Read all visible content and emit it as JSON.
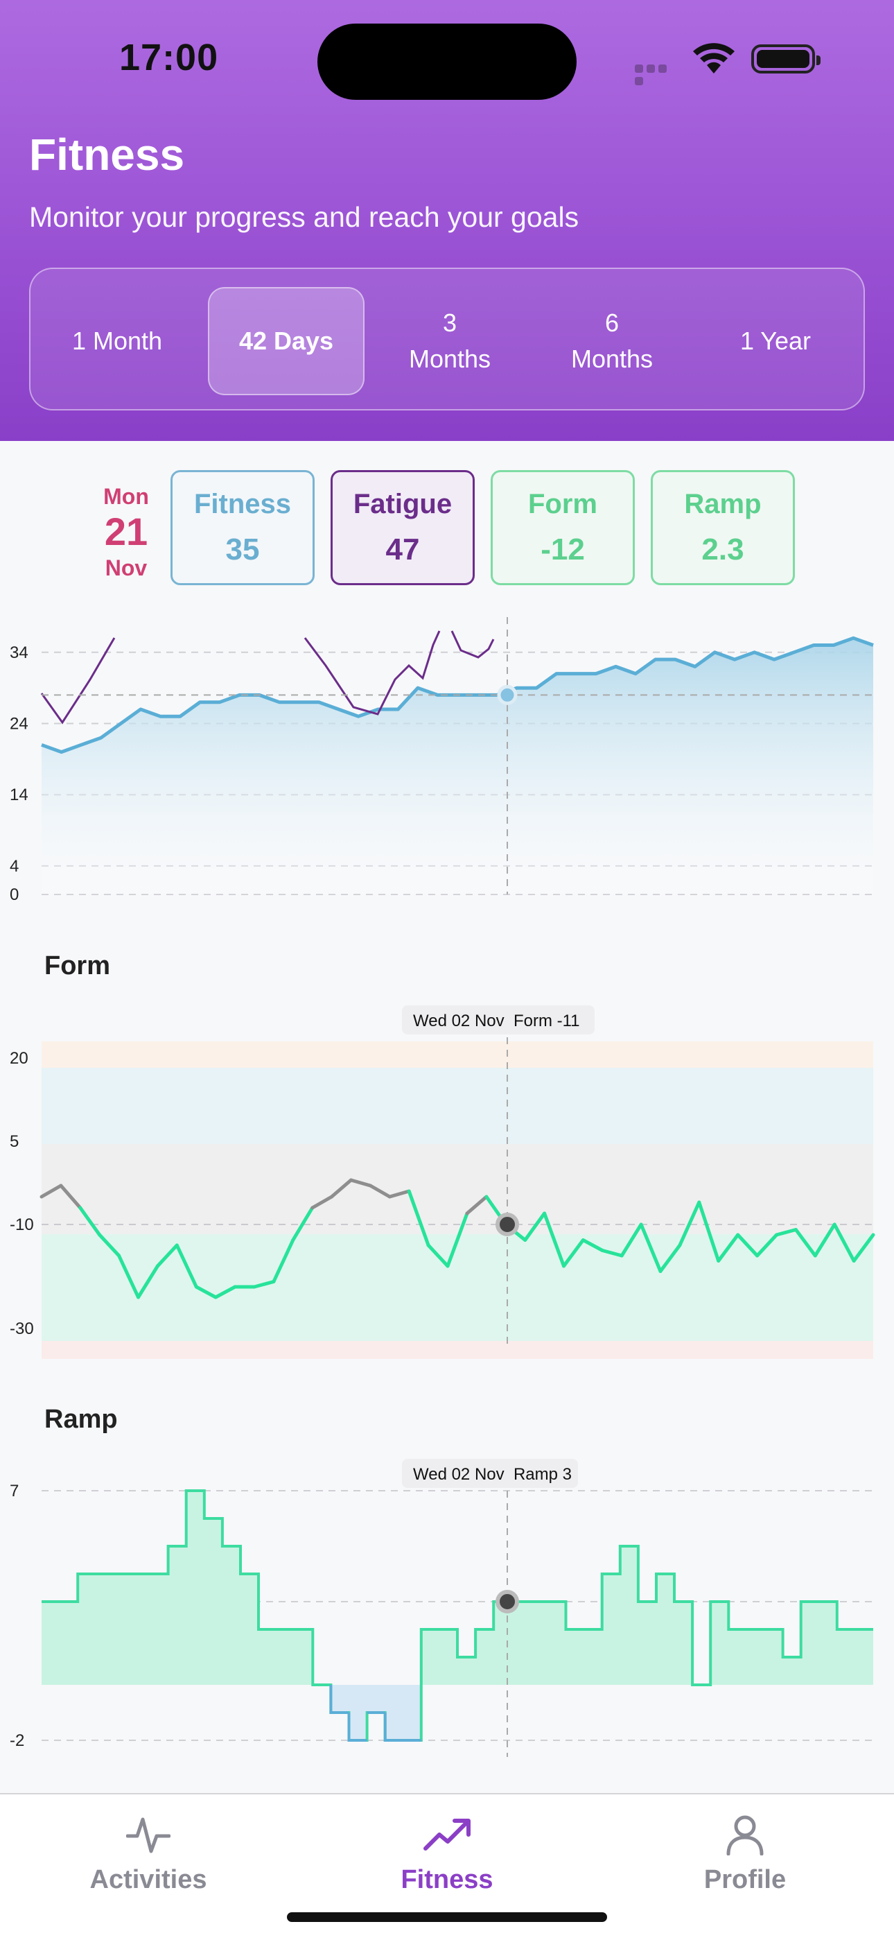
{
  "status": {
    "time": "17:00"
  },
  "header": {
    "title": "Fitness",
    "subtitle": "Monitor your progress and reach your goals",
    "ranges": [
      {
        "label": "1 Month",
        "active": false
      },
      {
        "label": "42 Days",
        "active": true
      },
      {
        "label": "3\nMonths",
        "active": false
      },
      {
        "label": "6\nMonths",
        "active": false
      },
      {
        "label": "1 Year",
        "active": false
      }
    ]
  },
  "selected_date": {
    "weekday": "Mon",
    "day": "21",
    "month": "Nov"
  },
  "metrics": [
    {
      "label": "Fitness",
      "value": "35",
      "color": "#6aaed0"
    },
    {
      "label": "Fatigue",
      "value": "47",
      "color": "#6b2d8a"
    },
    {
      "label": "Form",
      "value": "-12",
      "color": "#5cd08e"
    },
    {
      "label": "Ramp",
      "value": "2.3",
      "color": "#5cd08e"
    }
  ],
  "chart_data": [
    {
      "type": "line",
      "title": "",
      "yticks": [
        34,
        24,
        14,
        4,
        0
      ],
      "ylim": [
        0,
        37
      ],
      "series": [
        {
          "values": [
            21,
            20,
            21,
            22,
            24,
            26,
            25,
            25,
            27,
            27,
            28,
            28,
            27,
            27,
            27,
            26,
            25,
            26,
            26,
            29,
            28,
            28,
            28,
            28,
            29,
            29,
            31,
            31,
            31,
            32,
            31,
            33,
            33,
            32,
            34,
            33,
            34,
            33,
            34,
            35,
            35,
            36,
            35
          ]
        },
        {
          "values": [
            27,
            24,
            28,
            32,
            35
          ]
        }
      ],
      "crosshair_value": 28,
      "colors": {
        "fitness": "#5aaed6",
        "fatigue": "#6b2d8a"
      }
    },
    {
      "type": "line",
      "title": "Form",
      "tooltip": "Wed 02 Nov  Form -11",
      "yticks": [
        20,
        5,
        -10,
        -30
      ],
      "values": [
        -5,
        -3,
        -7,
        -12,
        -16,
        -24,
        -18,
        -14,
        -22,
        -24,
        -22,
        -22,
        -21,
        -13,
        -7,
        -5,
        -2,
        -3,
        -5,
        -4,
        -14,
        -18,
        -8,
        -5,
        -10,
        -13,
        -8,
        -18,
        -13,
        -15,
        -16,
        -10,
        -19,
        -14,
        -6,
        -17,
        -12,
        -16,
        -12,
        -11,
        -16,
        -10,
        -17,
        -12
      ]
    },
    {
      "type": "line",
      "title": "Ramp",
      "tooltip": "Wed 02 Nov  Ramp 3",
      "yticks": [
        7,
        -2
      ],
      "values": [
        3,
        3,
        4,
        4,
        4,
        4,
        4,
        5,
        7,
        6,
        5,
        4,
        2,
        2,
        2,
        0,
        -1,
        -2,
        -1,
        -2,
        -2,
        2,
        2,
        1,
        2,
        3,
        3,
        3,
        3,
        2,
        2,
        4,
        5,
        3,
        4,
        3,
        0,
        3,
        2,
        2,
        2,
        1,
        3,
        3,
        2,
        2
      ]
    }
  ],
  "tabs": [
    {
      "label": "Activities",
      "active": false
    },
    {
      "label": "Fitness",
      "active": true
    },
    {
      "label": "Profile",
      "active": false
    }
  ]
}
